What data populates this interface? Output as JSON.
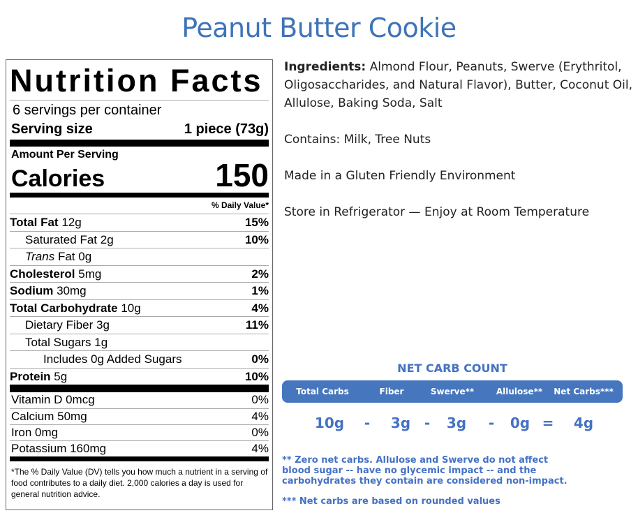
{
  "title": "Peanut Butter Cookie",
  "label": {
    "heading": "Nutrition Facts",
    "servings": "6 servings per container",
    "serving_size_label": "Serving size",
    "serving_size_value": "1 piece (73g)",
    "amount_per_serving": "Amount Per Serving",
    "calories_label": "Calories",
    "calories_value": "150",
    "dv_header": "% Daily Value*",
    "nutrients": [
      {
        "name": "Total Fat",
        "amount": "12g",
        "dv": "15%",
        "bold": true,
        "indent": 0
      },
      {
        "name": "Saturated Fat",
        "amount": "2g",
        "dv": "10%",
        "bold": false,
        "indent": 1
      },
      {
        "name": "Trans",
        "name_suffix": "Fat",
        "amount": "0g",
        "dv": "",
        "bold": false,
        "indent": 1,
        "italic": true
      },
      {
        "name": "Cholesterol",
        "amount": "5mg",
        "dv": "2%",
        "bold": true,
        "indent": 0
      },
      {
        "name": "Sodium",
        "amount": "30mg",
        "dv": "1%",
        "bold": true,
        "indent": 0
      },
      {
        "name": "Total Carbohydrate",
        "amount": "10g",
        "dv": "4%",
        "bold": true,
        "indent": 0
      },
      {
        "name": "Dietary Fiber",
        "amount": "3g",
        "dv": "11%",
        "bold": false,
        "indent": 1
      },
      {
        "name": "Total Sugars",
        "amount": "1g",
        "dv": "",
        "bold": false,
        "indent": 1
      },
      {
        "name": "Includes 0g Added Sugars",
        "amount": "",
        "dv": "0%",
        "bold": false,
        "indent": 2
      },
      {
        "name": "Protein",
        "amount": "5g",
        "dv": "10%",
        "bold": true,
        "indent": 0
      }
    ],
    "vitamins": [
      {
        "name": "Vitamin D 0mcg",
        "dv": "0%"
      },
      {
        "name": "Calcium 50mg",
        "dv": "4%"
      },
      {
        "name": "Iron 0mg",
        "dv": "0%"
      },
      {
        "name": "Potassium 160mg",
        "dv": "4%"
      }
    ],
    "footnote": "*The % Daily Value (DV) tells you how much a nutrient in a serving of food contributes to a daily diet. 2,000 calories a day is used for general nutrition advice."
  },
  "info": {
    "ingredients_label": "Ingredients:",
    "ingredients": " Almond Flour, Peanuts, Swerve (Erythritol, Oligosaccharides, and Natural Flavor), Butter, Coconut Oil, Allulose, Baking Soda, Salt",
    "contains": "Contains: Milk, Tree Nuts",
    "environment": "Made in a Gluten Friendly Environment",
    "storage": "Store in Refrigerator — Enjoy at Room Temperature"
  },
  "net_carb": {
    "title": "NET CARB COUNT",
    "headers": [
      "Total Carbs",
      "Fiber",
      "Swerve**",
      "Allulose**",
      "Net Carbs***"
    ],
    "values": [
      "10g",
      "-",
      "3g",
      "-",
      "3g",
      "-",
      "0g",
      "=",
      "4g"
    ],
    "note1": "** Zero net carbs. Allulose and Swerve do not affect blood sugar -- have no glycemic impact -- and the carbohydrates they contain are considered non-impact.",
    "note2": "*** Net carbs are based on rounded values",
    "accent": "#4472c4"
  }
}
